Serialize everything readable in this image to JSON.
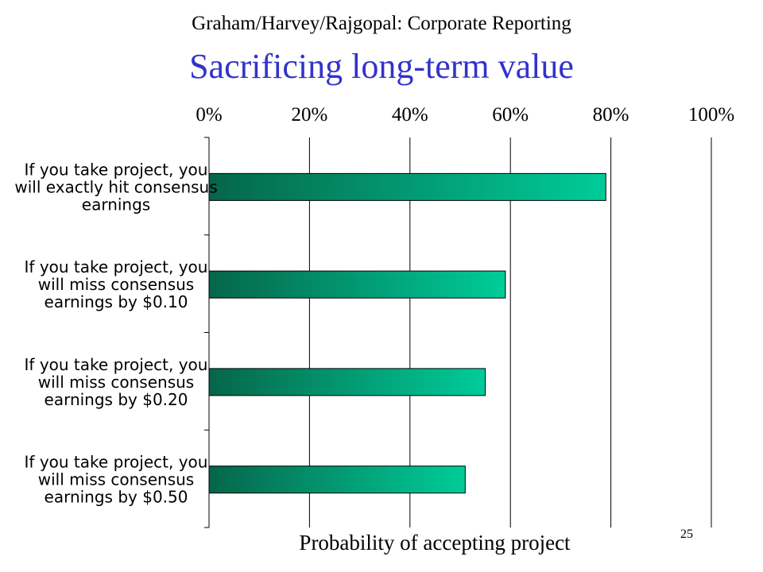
{
  "slide": {
    "header": "Graham/Harvey/Rajgopal: Corporate Reporting",
    "title": "Sacrificing long-term value",
    "page_number": "25"
  },
  "colors": {
    "bar_dark": "#05664a",
    "bar_light": "#00cc99",
    "grid": "#000000"
  },
  "chart_data": {
    "type": "bar",
    "orientation": "horizontal",
    "categories": [
      [
        "If you take project, you",
        "will exactly hit consensus",
        "earnings"
      ],
      [
        "If you take project, you",
        "will miss consensus",
        "earnings by $0.10"
      ],
      [
        "If you take project, you",
        "will miss consensus",
        "earnings by $0.20"
      ],
      [
        "If you take project, you",
        "will miss consensus",
        "earnings by $0.50"
      ]
    ],
    "values": [
      79,
      59,
      55,
      51
    ],
    "xlabel": "Probability of accepting project",
    "xlim": [
      0,
      100
    ],
    "xticks": [
      0,
      20,
      40,
      60,
      80,
      100
    ],
    "xtick_labels": [
      "0%",
      "20%",
      "40%",
      "60%",
      "80%",
      "100%"
    ],
    "xaxis_position": "top",
    "grid": "vertical"
  }
}
